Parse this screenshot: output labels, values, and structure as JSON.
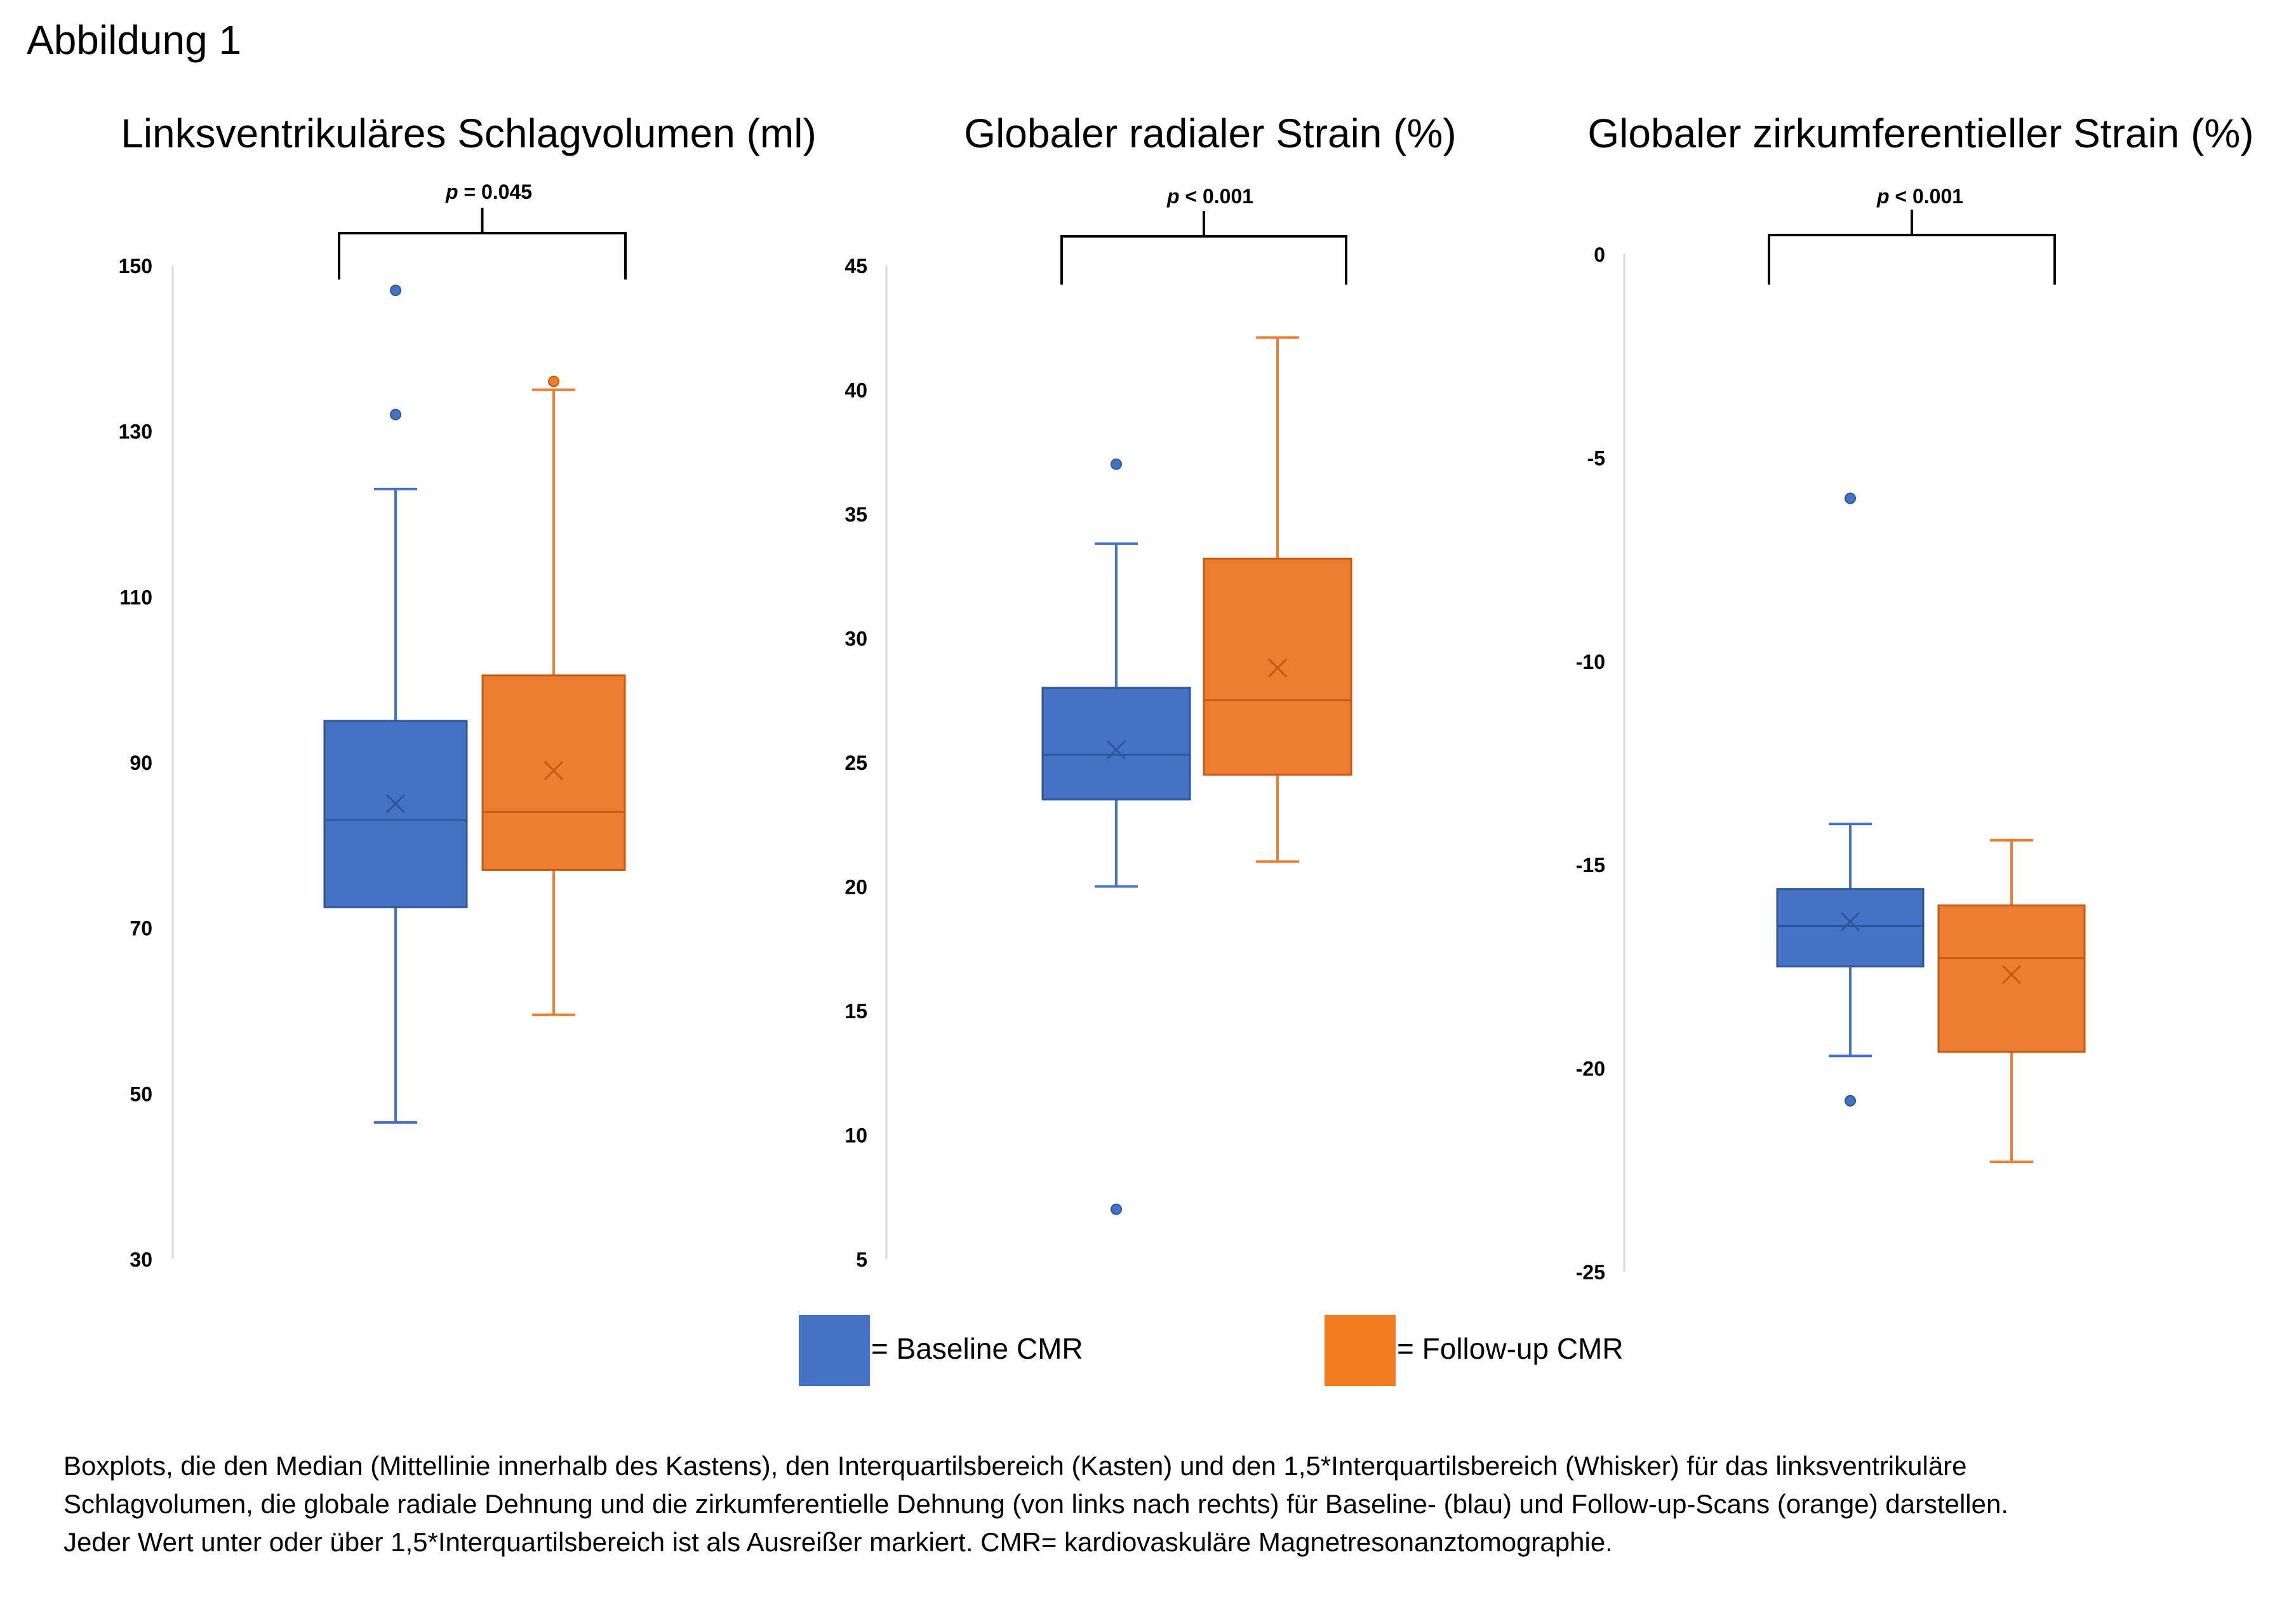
{
  "figure_label": "Abbildung 1",
  "colors": {
    "baseline": "#4472C4",
    "followup": "#ED7D31",
    "followup_legend": "#F47C20",
    "axis": "#d9d9d9",
    "bracket": "#000000"
  },
  "legend": {
    "baseline_label": "= Baseline CMR",
    "followup_label": "= Follow-up CMR"
  },
  "caption": [
    "Boxplots, die den Median (Mittellinie innerhalb des Kastens), den Interquartilsbereich (Kasten) und den 1,5*Interquartilsbereich (Whisker) für das linksventrikuläre",
    "Schlagvolumen, die globale radiale Dehnung und die zirkumferentielle Dehnung (von links nach rechts) für Baseline- (blau) und Follow-up-Scans (orange) darstellen.",
    "Jeder Wert unter oder über 1,5*Interquartilsbereich ist als Ausreißer markiert. CMR= kardiovaskuläre Magnetresonanztomographie."
  ],
  "chart_data": [
    {
      "type": "box",
      "title": "Linksventrikuläres Schlagvolumen (ml)",
      "p_label": "p",
      "p_value": " = 0.045",
      "ylim": [
        30,
        150
      ],
      "yticks": [
        "150",
        "130",
        "110",
        "90",
        "70",
        "50",
        "30"
      ],
      "series": [
        {
          "name": "Baseline CMR",
          "min": 46.5,
          "q1": 72.5,
          "median": 83,
          "q3": 95,
          "max": 123,
          "mean": 85,
          "outliers": [
            147,
            132
          ]
        },
        {
          "name": "Follow-up CMR",
          "min": 59.5,
          "q1": 77,
          "median": 84,
          "q3": 100.5,
          "max": 135,
          "mean": 89,
          "outliers": [
            136
          ]
        }
      ]
    },
    {
      "type": "box",
      "title": "Globaler radialer Strain (%)",
      "p_label": "p",
      "p_value": " < 0.001",
      "ylim": [
        5,
        45
      ],
      "yticks": [
        "45",
        "40",
        "35",
        "30",
        "25",
        "20",
        "15",
        "10",
        "5"
      ],
      "series": [
        {
          "name": "Baseline CMR",
          "min": 20,
          "q1": 23.5,
          "median": 25.3,
          "q3": 28,
          "max": 33.8,
          "mean": 25.5,
          "outliers": [
            37,
            7
          ]
        },
        {
          "name": "Follow-up CMR",
          "min": 21,
          "q1": 24.5,
          "median": 27.5,
          "q3": 33.2,
          "max": 42.1,
          "mean": 28.8,
          "outliers": []
        }
      ]
    },
    {
      "type": "box",
      "title": "Globaler zirkumferentieller Strain (%)",
      "p_label": "p",
      "p_value": " < 0.001",
      "ylim": [
        -25,
        0
      ],
      "yticks": [
        "0",
        "-5",
        "-10",
        "-15",
        "-20",
        "-25"
      ],
      "series": [
        {
          "name": "Baseline CMR",
          "min": -19.7,
          "q1": -17.5,
          "median": -16.5,
          "q3": -15.6,
          "max": -14.0,
          "mean": -16.4,
          "outliers": [
            -6,
            -20.8
          ]
        },
        {
          "name": "Follow-up CMR",
          "min": -22.3,
          "q1": -19.6,
          "median": -17.3,
          "q3": -16.0,
          "max": -14.4,
          "mean": -17.7,
          "outliers": []
        }
      ]
    }
  ]
}
